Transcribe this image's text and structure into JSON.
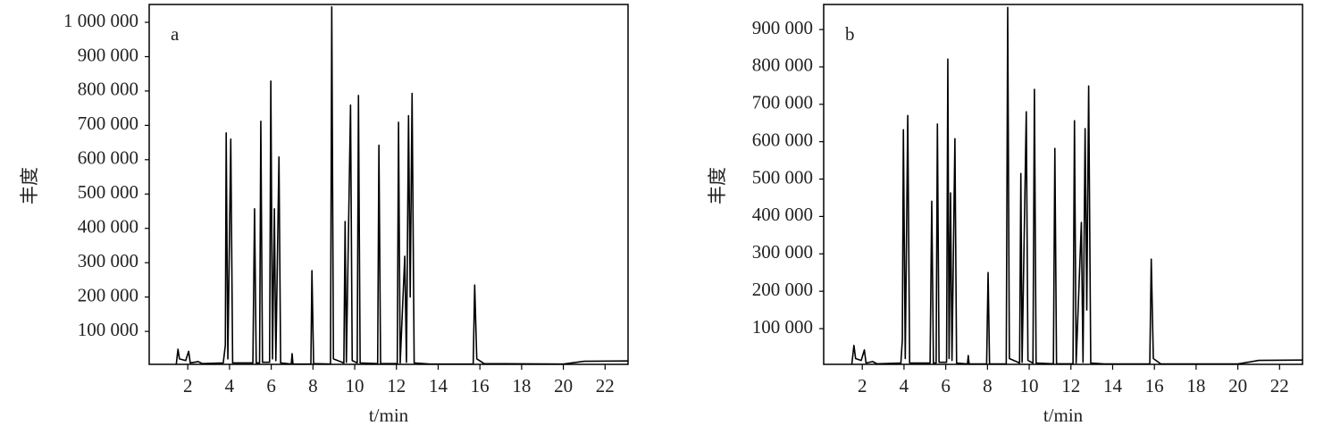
{
  "chart_data": [
    {
      "type": "line",
      "annotation": "a",
      "x_label": "t/min",
      "y_label": "丰度",
      "color": "#000000",
      "xlim": [
        0.15,
        23.1
      ],
      "xticks": [
        2,
        4,
        6,
        8,
        10,
        12,
        14,
        16,
        18,
        20,
        22
      ],
      "ylim": [
        4000,
        1052000
      ],
      "yticks": [
        {
          "value": 100000,
          "label": "100 000"
        },
        {
          "value": 200000,
          "label": "200 000"
        },
        {
          "value": 300000,
          "label": "300 000"
        },
        {
          "value": 400000,
          "label": "400 000"
        },
        {
          "value": 500000,
          "label": "500 000"
        },
        {
          "value": 600000,
          "label": "600 000"
        },
        {
          "value": 700000,
          "label": "700 000"
        },
        {
          "value": 800000,
          "label": "800 000"
        },
        {
          "value": 900000,
          "label": "900 000"
        },
        {
          "value": 1000000,
          "label": "1 000 000"
        }
      ],
      "x": [
        1.45,
        1.53,
        1.6,
        1.9,
        2.04,
        2.12,
        2.5,
        2.7,
        3.7,
        3.8,
        3.84,
        3.92,
        4.06,
        4.15,
        5.12,
        5.2,
        5.28,
        5.44,
        5.5,
        5.58,
        5.92,
        5.98,
        6.06,
        6.15,
        6.22,
        6.37,
        6.45,
        6.96,
        7.0,
        7.04,
        7.9,
        7.95,
        8.03,
        8.84,
        8.9,
        8.98,
        9.48,
        9.54,
        9.6,
        9.8,
        9.88,
        10.12,
        10.18,
        10.26,
        11.1,
        11.16,
        11.24,
        12.04,
        12.1,
        12.18,
        12.4,
        12.48,
        12.58,
        12.66,
        12.75,
        12.85,
        13.6,
        15.68,
        15.75,
        15.85,
        16.2,
        20,
        21,
        23.1
      ],
      "values": [
        5000,
        48000,
        20000,
        15000,
        42000,
        8000,
        12000,
        6000,
        8000,
        60000,
        678000,
        20000,
        660000,
        8000,
        8000,
        457000,
        8000,
        8000,
        712000,
        10000,
        10000,
        829000,
        20000,
        457000,
        15000,
        608000,
        8000,
        5000,
        35000,
        5000,
        5000,
        277000,
        6000,
        5000,
        1045000,
        20000,
        8000,
        420000,
        10000,
        759000,
        15000,
        8000,
        787000,
        8000,
        6000,
        642000,
        6000,
        6000,
        709000,
        8000,
        319000,
        10000,
        728000,
        200000,
        793000,
        8000,
        5000,
        5000,
        235000,
        20000,
        6000,
        5000,
        13000,
        14000
      ]
    },
    {
      "type": "line",
      "annotation": "b",
      "x_label": "t/min",
      "y_label": "丰度",
      "color": "#000000",
      "xlim": [
        0.15,
        23.1
      ],
      "xticks": [
        2,
        4,
        6,
        8,
        10,
        12,
        14,
        16,
        18,
        20,
        22
      ],
      "ylim": [
        4500,
        967000
      ],
      "yticks": [
        {
          "value": 100000,
          "label": "100 000"
        },
        {
          "value": 200000,
          "label": "200 000"
        },
        {
          "value": 300000,
          "label": "300 000"
        },
        {
          "value": 400000,
          "label": "400 000"
        },
        {
          "value": 500000,
          "label": "500 000"
        },
        {
          "value": 600000,
          "label": "600 000"
        },
        {
          "value": 700000,
          "label": "700 000"
        },
        {
          "value": 800000,
          "label": "800 000"
        },
        {
          "value": 900000,
          "label": "900 000"
        }
      ],
      "x": [
        1.5,
        1.6,
        1.68,
        1.95,
        2.1,
        2.18,
        2.5,
        2.7,
        3.85,
        3.92,
        3.97,
        4.06,
        4.18,
        4.27,
        5.25,
        5.33,
        5.41,
        5.54,
        5.6,
        5.68,
        6.04,
        6.1,
        6.16,
        6.23,
        6.3,
        6.44,
        6.52,
        7.04,
        7.08,
        7.12,
        7.96,
        8.03,
        8.1,
        8.9,
        8.97,
        9.05,
        9.54,
        9.6,
        9.66,
        9.86,
        9.94,
        10.18,
        10.25,
        10.33,
        11.16,
        11.23,
        11.31,
        12.1,
        12.17,
        12.25,
        12.5,
        12.58,
        12.68,
        12.76,
        12.85,
        12.95,
        13.6,
        15.78,
        15.85,
        15.95,
        16.3,
        20,
        21,
        23.1
      ],
      "values": [
        5500,
        55000,
        20000,
        15000,
        43000,
        8000,
        12000,
        6000,
        8000,
        70000,
        632000,
        20000,
        670000,
        8000,
        8000,
        441000,
        8000,
        8000,
        647000,
        10000,
        10000,
        821000,
        20000,
        463000,
        15000,
        608000,
        8000,
        5500,
        28000,
        5500,
        5500,
        250000,
        6000,
        5500,
        959000,
        20000,
        8000,
        515000,
        10000,
        680000,
        15000,
        8000,
        740000,
        8000,
        6000,
        582000,
        6000,
        6000,
        656000,
        8000,
        384000,
        10000,
        635000,
        150000,
        749000,
        8000,
        5500,
        5500,
        286000,
        20000,
        6000,
        5500,
        15000,
        16000
      ]
    }
  ]
}
